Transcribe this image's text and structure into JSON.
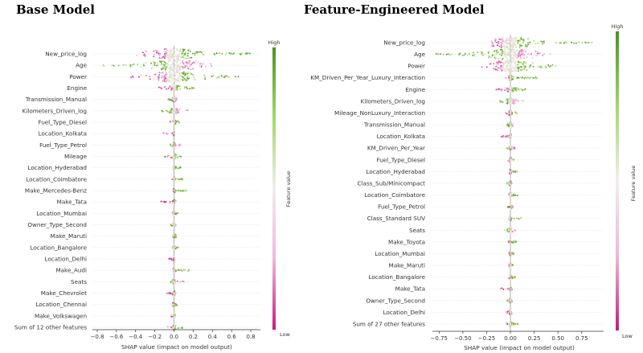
{
  "colors": {
    "high": "#4d9221",
    "mid": "#f0eeec",
    "low": "#c51b7d",
    "grid": "#e6e6e6",
    "zero_line": "#999999"
  },
  "chart_data": [
    {
      "type": "scatter",
      "subtype": "shap_beeswarm",
      "title": "Base Model",
      "xlabel": "SHAP value (impact on model output)",
      "colorbar_label": "Feature value",
      "colorbar_high": "High",
      "colorbar_low": "Low",
      "xlim": [
        -0.85,
        0.9
      ],
      "xticks": [
        -0.8,
        -0.6,
        -0.4,
        -0.2,
        0.0,
        0.2,
        0.4,
        0.6,
        0.8
      ],
      "xtick_labels": [
        "−0.8",
        "−0.6",
        "−0.4",
        "−0.2",
        "0.0",
        "0.2",
        "0.4",
        "0.6",
        "0.8"
      ],
      "features": [
        {
          "name": "New_price_log",
          "min": -0.45,
          "max": 0.85,
          "lowSide": -1,
          "core": 0.32
        },
        {
          "name": "Age",
          "min": -0.78,
          "max": 0.4,
          "lowSide": 1,
          "core": 0.3
        },
        {
          "name": "Power",
          "min": -0.45,
          "max": 0.72,
          "lowSide": -1,
          "core": 0.3
        },
        {
          "name": "Engine",
          "min": -0.17,
          "max": 0.24,
          "lowSide": -1,
          "core": 0.08
        },
        {
          "name": "Transmission_Manual",
          "min": -0.06,
          "max": 0.03,
          "lowSide": 1,
          "core": 0.02
        },
        {
          "name": "Kilometers_Driven_log",
          "min": -0.13,
          "max": 0.16,
          "lowSide": 1,
          "core": 0.07
        },
        {
          "name": "Fuel_Type_Diesel",
          "min": -0.05,
          "max": 0.06,
          "lowSide": -1,
          "core": 0.03
        },
        {
          "name": "Location_Kolkata",
          "min": -0.15,
          "max": 0.02,
          "lowSide": -1,
          "core": 0.01
        },
        {
          "name": "Fuel_Type_Petrol",
          "min": -0.05,
          "max": 0.07,
          "lowSide": 1,
          "core": 0.02
        },
        {
          "name": "Mileage",
          "min": -0.1,
          "max": 0.08,
          "lowSide": -1,
          "core": 0.03
        },
        {
          "name": "Location_Hyderabad",
          "min": -0.02,
          "max": 0.08,
          "lowSide": -1,
          "core": 0.01
        },
        {
          "name": "Location_Coimbatore",
          "min": -0.02,
          "max": 0.09,
          "lowSide": -1,
          "core": 0.01
        },
        {
          "name": "Make_Mercedes-Benz",
          "min": -0.02,
          "max": 0.14,
          "lowSide": -1,
          "core": 0.01
        },
        {
          "name": "Make_Tata",
          "min": -0.14,
          "max": 0.02,
          "lowSide": -1,
          "core": 0.01
        },
        {
          "name": "Location_Mumbai",
          "min": -0.02,
          "max": 0.04,
          "lowSide": -1,
          "core": 0.01
        },
        {
          "name": "Owner_Type_Second",
          "min": -0.04,
          "max": 0.02,
          "lowSide": 1,
          "core": 0.01
        },
        {
          "name": "Make_Maruti",
          "min": -0.02,
          "max": 0.04,
          "lowSide": -1,
          "core": 0.01
        },
        {
          "name": "Location_Bangalore",
          "min": -0.02,
          "max": 0.05,
          "lowSide": -1,
          "core": 0.01
        },
        {
          "name": "Location_Delhi",
          "min": -0.06,
          "max": 0.02,
          "lowSide": -1,
          "core": 0.01
        },
        {
          "name": "Make_Audi",
          "min": -0.02,
          "max": 0.16,
          "lowSide": -1,
          "core": 0.01
        },
        {
          "name": "Seats",
          "min": -0.05,
          "max": 0.12,
          "lowSide": 1,
          "core": 0.02
        },
        {
          "name": "Make_Chevrolet",
          "min": -0.08,
          "max": 0.02,
          "lowSide": -1,
          "core": 0.01
        },
        {
          "name": "Location_Chennai",
          "min": -0.02,
          "max": 0.03,
          "lowSide": -1,
          "core": 0.01
        },
        {
          "name": "Make_Volkswagen",
          "min": -0.03,
          "max": 0.02,
          "lowSide": -1,
          "core": 0.01
        },
        {
          "name": "Sum of 12 other features",
          "min": -0.07,
          "max": 0.1,
          "lowSide": -1,
          "core": 0.02
        }
      ]
    },
    {
      "type": "scatter",
      "subtype": "shap_beeswarm",
      "title": "Feature-Engineered Model",
      "xlabel": "SHAP value (impact on model output)",
      "colorbar_label": "Feature value",
      "colorbar_high": "High",
      "colorbar_low": "Low",
      "xlim": [
        -0.82,
        0.98
      ],
      "xticks": [
        -0.75,
        -0.5,
        -0.25,
        0.0,
        0.25,
        0.5,
        0.75
      ],
      "xtick_labels": [
        "−0.75",
        "−0.50",
        "−0.25",
        "0.00",
        "0.25",
        "0.50",
        "0.75"
      ],
      "features": [
        {
          "name": "New_price_log",
          "min": -0.2,
          "max": 0.9,
          "lowSide": -1,
          "core": 0.3
        },
        {
          "name": "Age",
          "min": -0.78,
          "max": 0.42,
          "lowSide": 1,
          "core": 0.3
        },
        {
          "name": "Power",
          "min": -0.32,
          "max": 0.48,
          "lowSide": -1,
          "core": 0.3
        },
        {
          "name": "KM_Driven_Per_Year_Luxury_Interaction",
          "min": -0.05,
          "max": 0.28,
          "lowSide": -1,
          "core": 0.03
        },
        {
          "name": "Engine",
          "min": -0.15,
          "max": 0.18,
          "lowSide": -1,
          "core": 0.06
        },
        {
          "name": "Kilometers_Driven_log",
          "min": -0.12,
          "max": 0.18,
          "lowSide": 1,
          "core": 0.07
        },
        {
          "name": "Mileage_NonLuxury_Interaction",
          "min": -0.06,
          "max": 0.07,
          "lowSide": -1,
          "core": 0.03
        },
        {
          "name": "Transmission_Manual",
          "min": -0.04,
          "max": 0.03,
          "lowSide": 1,
          "core": 0.02
        },
        {
          "name": "Location_Kolkata",
          "min": -0.1,
          "max": 0.02,
          "lowSide": -1,
          "core": 0.01
        },
        {
          "name": "KM_Driven_Per_Year",
          "min": -0.04,
          "max": 0.05,
          "lowSide": 1,
          "core": 0.02
        },
        {
          "name": "Fuel_Type_Diesel",
          "min": -0.03,
          "max": 0.04,
          "lowSide": -1,
          "core": 0.02
        },
        {
          "name": "Location_Hyderabad",
          "min": -0.02,
          "max": 0.07,
          "lowSide": -1,
          "core": 0.01
        },
        {
          "name": "Class_Sub/Minicompact",
          "min": -0.04,
          "max": 0.02,
          "lowSide": 1,
          "core": 0.01
        },
        {
          "name": "Location_Coimbatore",
          "min": -0.02,
          "max": 0.08,
          "lowSide": -1,
          "core": 0.01
        },
        {
          "name": "Fuel_Type_Petrol",
          "min": -0.03,
          "max": 0.03,
          "lowSide": 1,
          "core": 0.01
        },
        {
          "name": "Class_Standard SUV",
          "min": -0.02,
          "max": 0.12,
          "lowSide": -1,
          "core": 0.01
        },
        {
          "name": "Seats",
          "min": -0.06,
          "max": 0.08,
          "lowSide": 1,
          "core": 0.02
        },
        {
          "name": "Make_Toyota",
          "min": -0.02,
          "max": 0.07,
          "lowSide": -1,
          "core": 0.01
        },
        {
          "name": "Location_Mumbai",
          "min": -0.02,
          "max": 0.04,
          "lowSide": -1,
          "core": 0.01
        },
        {
          "name": "Make_Maruti",
          "min": -0.02,
          "max": 0.04,
          "lowSide": -1,
          "core": 0.01
        },
        {
          "name": "Location_Bangalore",
          "min": -0.02,
          "max": 0.05,
          "lowSide": -1,
          "core": 0.01
        },
        {
          "name": "Make_Tata",
          "min": -0.12,
          "max": 0.02,
          "lowSide": -1,
          "core": 0.01
        },
        {
          "name": "Owner_Type_Second",
          "min": -0.04,
          "max": 0.02,
          "lowSide": 1,
          "core": 0.01
        },
        {
          "name": "Location_Delhi",
          "min": -0.06,
          "max": 0.02,
          "lowSide": -1,
          "core": 0.01
        },
        {
          "name": "Sum of 27 other features",
          "min": -0.05,
          "max": 0.08,
          "lowSide": -1,
          "core": 0.02
        }
      ]
    }
  ]
}
